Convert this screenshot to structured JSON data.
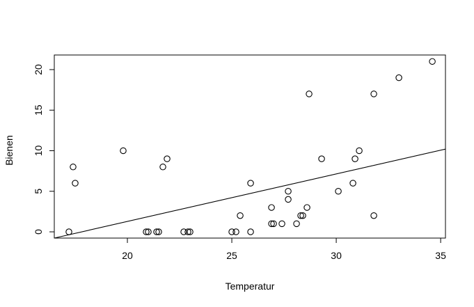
{
  "chart_data": {
    "type": "scatter",
    "title": "",
    "xlabel": "Temperatur",
    "ylabel": "Bienen",
    "xlim": [
      16.5,
      35.23
    ],
    "ylim": [
      -0.77,
      21.8
    ],
    "x_ticks": [
      20,
      25,
      30,
      35
    ],
    "y_ticks": [
      0,
      5,
      10,
      15,
      20
    ],
    "grid": false,
    "legend": null,
    "points": [
      {
        "x": 17.2,
        "y": 0
      },
      {
        "x": 17.4,
        "y": 8
      },
      {
        "x": 17.5,
        "y": 6
      },
      {
        "x": 19.8,
        "y": 10
      },
      {
        "x": 20.9,
        "y": 0
      },
      {
        "x": 21.0,
        "y": 0
      },
      {
        "x": 21.4,
        "y": 0
      },
      {
        "x": 21.5,
        "y": 0
      },
      {
        "x": 21.7,
        "y": 8
      },
      {
        "x": 21.9,
        "y": 9
      },
      {
        "x": 22.7,
        "y": 0
      },
      {
        "x": 22.9,
        "y": 0
      },
      {
        "x": 23.0,
        "y": 0
      },
      {
        "x": 25.0,
        "y": 0
      },
      {
        "x": 25.2,
        "y": 0
      },
      {
        "x": 25.4,
        "y": 2
      },
      {
        "x": 25.9,
        "y": 6
      },
      {
        "x": 25.9,
        "y": 0
      },
      {
        "x": 26.9,
        "y": 3
      },
      {
        "x": 26.9,
        "y": 1
      },
      {
        "x": 27.0,
        "y": 1
      },
      {
        "x": 27.4,
        "y": 1
      },
      {
        "x": 27.7,
        "y": 5
      },
      {
        "x": 27.7,
        "y": 4
      },
      {
        "x": 28.1,
        "y": 1
      },
      {
        "x": 28.3,
        "y": 2
      },
      {
        "x": 28.4,
        "y": 2
      },
      {
        "x": 28.6,
        "y": 3
      },
      {
        "x": 28.7,
        "y": 17
      },
      {
        "x": 29.3,
        "y": 9
      },
      {
        "x": 30.1,
        "y": 5
      },
      {
        "x": 30.8,
        "y": 6
      },
      {
        "x": 30.9,
        "y": 9
      },
      {
        "x": 31.1,
        "y": 10
      },
      {
        "x": 31.8,
        "y": 17
      },
      {
        "x": 31.8,
        "y": 2
      },
      {
        "x": 33.0,
        "y": 19
      },
      {
        "x": 34.6,
        "y": 21
      }
    ],
    "regression_line": {
      "x1": 16.5,
      "y1": -0.77,
      "x2": 35.23,
      "y2": 10.2
    }
  }
}
